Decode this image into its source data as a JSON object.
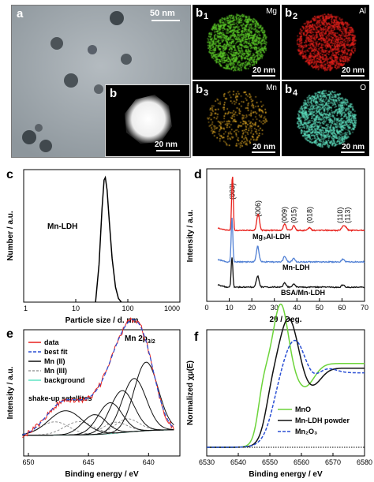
{
  "panel_a": {
    "letter": "a",
    "scale_bar": "50 nm",
    "inset": {
      "letter": "b",
      "scale_bar": "20 nm"
    }
  },
  "eds_maps": [
    {
      "letter": "b",
      "sub": "1",
      "element": "Mg",
      "scale_bar": "20 nm",
      "color": "#5fd12a"
    },
    {
      "letter": "b",
      "sub": "2",
      "element": "Al",
      "scale_bar": "20 nm",
      "color": "#e8211c"
    },
    {
      "letter": "b",
      "sub": "3",
      "element": "Mn",
      "scale_bar": "20 nm",
      "color": "#e0a824"
    },
    {
      "letter": "b",
      "sub": "4",
      "element": "O",
      "scale_bar": "20 nm",
      "color": "#5fe3c2"
    }
  ],
  "chart_data": [
    {
      "panel": "c",
      "type": "line",
      "xlabel": "Particle size / d. nm",
      "ylabel": "Number / a.u.",
      "xscale": "log",
      "xlim": [
        1,
        1000
      ],
      "xticks": [
        "1",
        "10",
        "100",
        "1000"
      ],
      "annotations": [
        "Mn-LDH"
      ],
      "series": [
        {
          "x": [
            24,
            28,
            32,
            35,
            37,
            40,
            44,
            50,
            58,
            66,
            75
          ],
          "y": [
            0,
            0.3,
            0.75,
            0.98,
            1.0,
            0.9,
            0.65,
            0.35,
            0.12,
            0.03,
            0
          ]
        }
      ]
    },
    {
      "panel": "d",
      "type": "line",
      "xlabel": "2θ / Deg.",
      "ylabel": "Intensity / a.u.",
      "xlim": [
        0,
        70
      ],
      "xticks": [
        "0",
        "10",
        "20",
        "30",
        "40",
        "50",
        "60",
        "70"
      ],
      "peak_labels": [
        "(003)",
        "(006)",
        "(009)",
        "(015)",
        "(018)",
        "(110)",
        "(113)"
      ],
      "peak_positions": [
        11.4,
        22.8,
        34.5,
        38.6,
        45.6,
        60.2,
        61.5
      ],
      "series": [
        {
          "name": "Mg₃Al-LDH",
          "color": "#e8211c",
          "peaks": [
            [
              11.4,
              1.0
            ],
            [
              22.8,
              0.3
            ],
            [
              34.6,
              0.12
            ],
            [
              38.6,
              0.08
            ],
            [
              45.6,
              0.05
            ],
            [
              60.4,
              0.07
            ],
            [
              61.6,
              0.06
            ]
          ]
        },
        {
          "name": "Mn-LDH",
          "color": "#4f7fd4",
          "peaks": [
            [
              11.2,
              0.8
            ],
            [
              22.6,
              0.28
            ],
            [
              34.6,
              0.1
            ],
            [
              38.6,
              0.06
            ],
            [
              60.4,
              0.05
            ]
          ]
        },
        {
          "name": "BSA/Mn-LDH",
          "color": "#111111",
          "peaks": [
            [
              11.2,
              0.55
            ],
            [
              22.6,
              0.2
            ],
            [
              34.6,
              0.08
            ],
            [
              38.6,
              0.05
            ],
            [
              60.4,
              0.04
            ]
          ]
        }
      ]
    },
    {
      "panel": "e",
      "type": "line",
      "xlabel": "Binding energy / eV",
      "ylabel": "Intensity / a.u.",
      "xlim": [
        650,
        637
      ],
      "xticks": [
        "650",
        "645",
        "640"
      ],
      "title": "Mn 2p3/2",
      "annotations": [
        "shake-up satellites"
      ],
      "legend": [
        "data",
        "best fit",
        "Mn (II)",
        "Mn (III)",
        "background"
      ],
      "colors": {
        "data": "#e8211c",
        "best_fit": "#2a4fd4",
        "mn2": "#111111",
        "mn3": "#888888",
        "background": "#5fe3c2"
      },
      "components_mn2": [
        [
          646.9,
          0.22,
          1.4
        ],
        [
          644.5,
          0.18,
          1.0
        ],
        [
          643.2,
          0.28,
          1.0
        ],
        [
          642.2,
          0.38,
          1.0
        ],
        [
          641.2,
          0.48,
          1.0
        ],
        [
          640.2,
          0.62,
          1.0
        ]
      ],
      "components_mn3": [
        [
          647.8,
          0.12,
          1.2
        ],
        [
          645.8,
          0.12,
          1.2
        ],
        [
          642.8,
          0.1,
          1.0
        ],
        [
          641.8,
          0.12,
          1.0
        ]
      ]
    },
    {
      "panel": "f",
      "type": "line",
      "xlabel": "Binding energy / eV",
      "ylabel": "Normalized χμ(E)",
      "xlim": [
        6530,
        6580
      ],
      "xticks": [
        "6530",
        "6540",
        "6550",
        "6560",
        "6570",
        "6580"
      ],
      "series": [
        {
          "name": "MnO",
          "color": "#6cd43a"
        },
        {
          "name": "Mn-LDH powder",
          "color": "#111111"
        },
        {
          "name": "Mn₂O₃",
          "color": "#2a4fd4"
        }
      ]
    }
  ]
}
